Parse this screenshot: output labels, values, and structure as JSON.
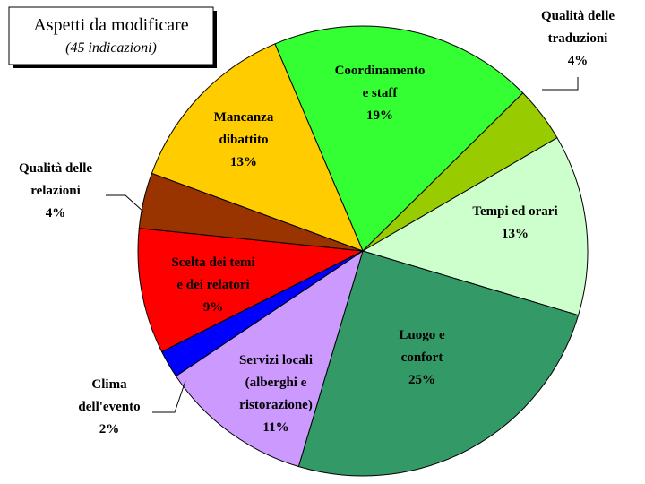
{
  "chart_data": {
    "type": "pie",
    "title": "Aspetti da modificare",
    "subtitle": "(45 indicazioni)",
    "categories": [
      "Coordinamento\ne staff",
      "Qualità delle\ntraduzioni",
      "Tempi ed orari",
      "Luogo e\nconfort",
      "Servizi locali\n(alberghi e\nristorazione)",
      "Clima\ndell'evento",
      "Scelta dei temi\ne dei relatori",
      "Qualità delle\nrelazioni",
      "Mancanza\ndibattito"
    ],
    "values": [
      19,
      4,
      13,
      25,
      11,
      2,
      9,
      4,
      13
    ],
    "value_labels": [
      "19%",
      "4%",
      "13%",
      "25%",
      "11%",
      "2%",
      "9%",
      "4%",
      "13%"
    ],
    "colors": [
      "#33ff33",
      "#99cc00",
      "#ccffcc",
      "#339966",
      "#cc99ff",
      "#0000ff",
      "#ff0000",
      "#993300",
      "#ffcc00"
    ]
  }
}
